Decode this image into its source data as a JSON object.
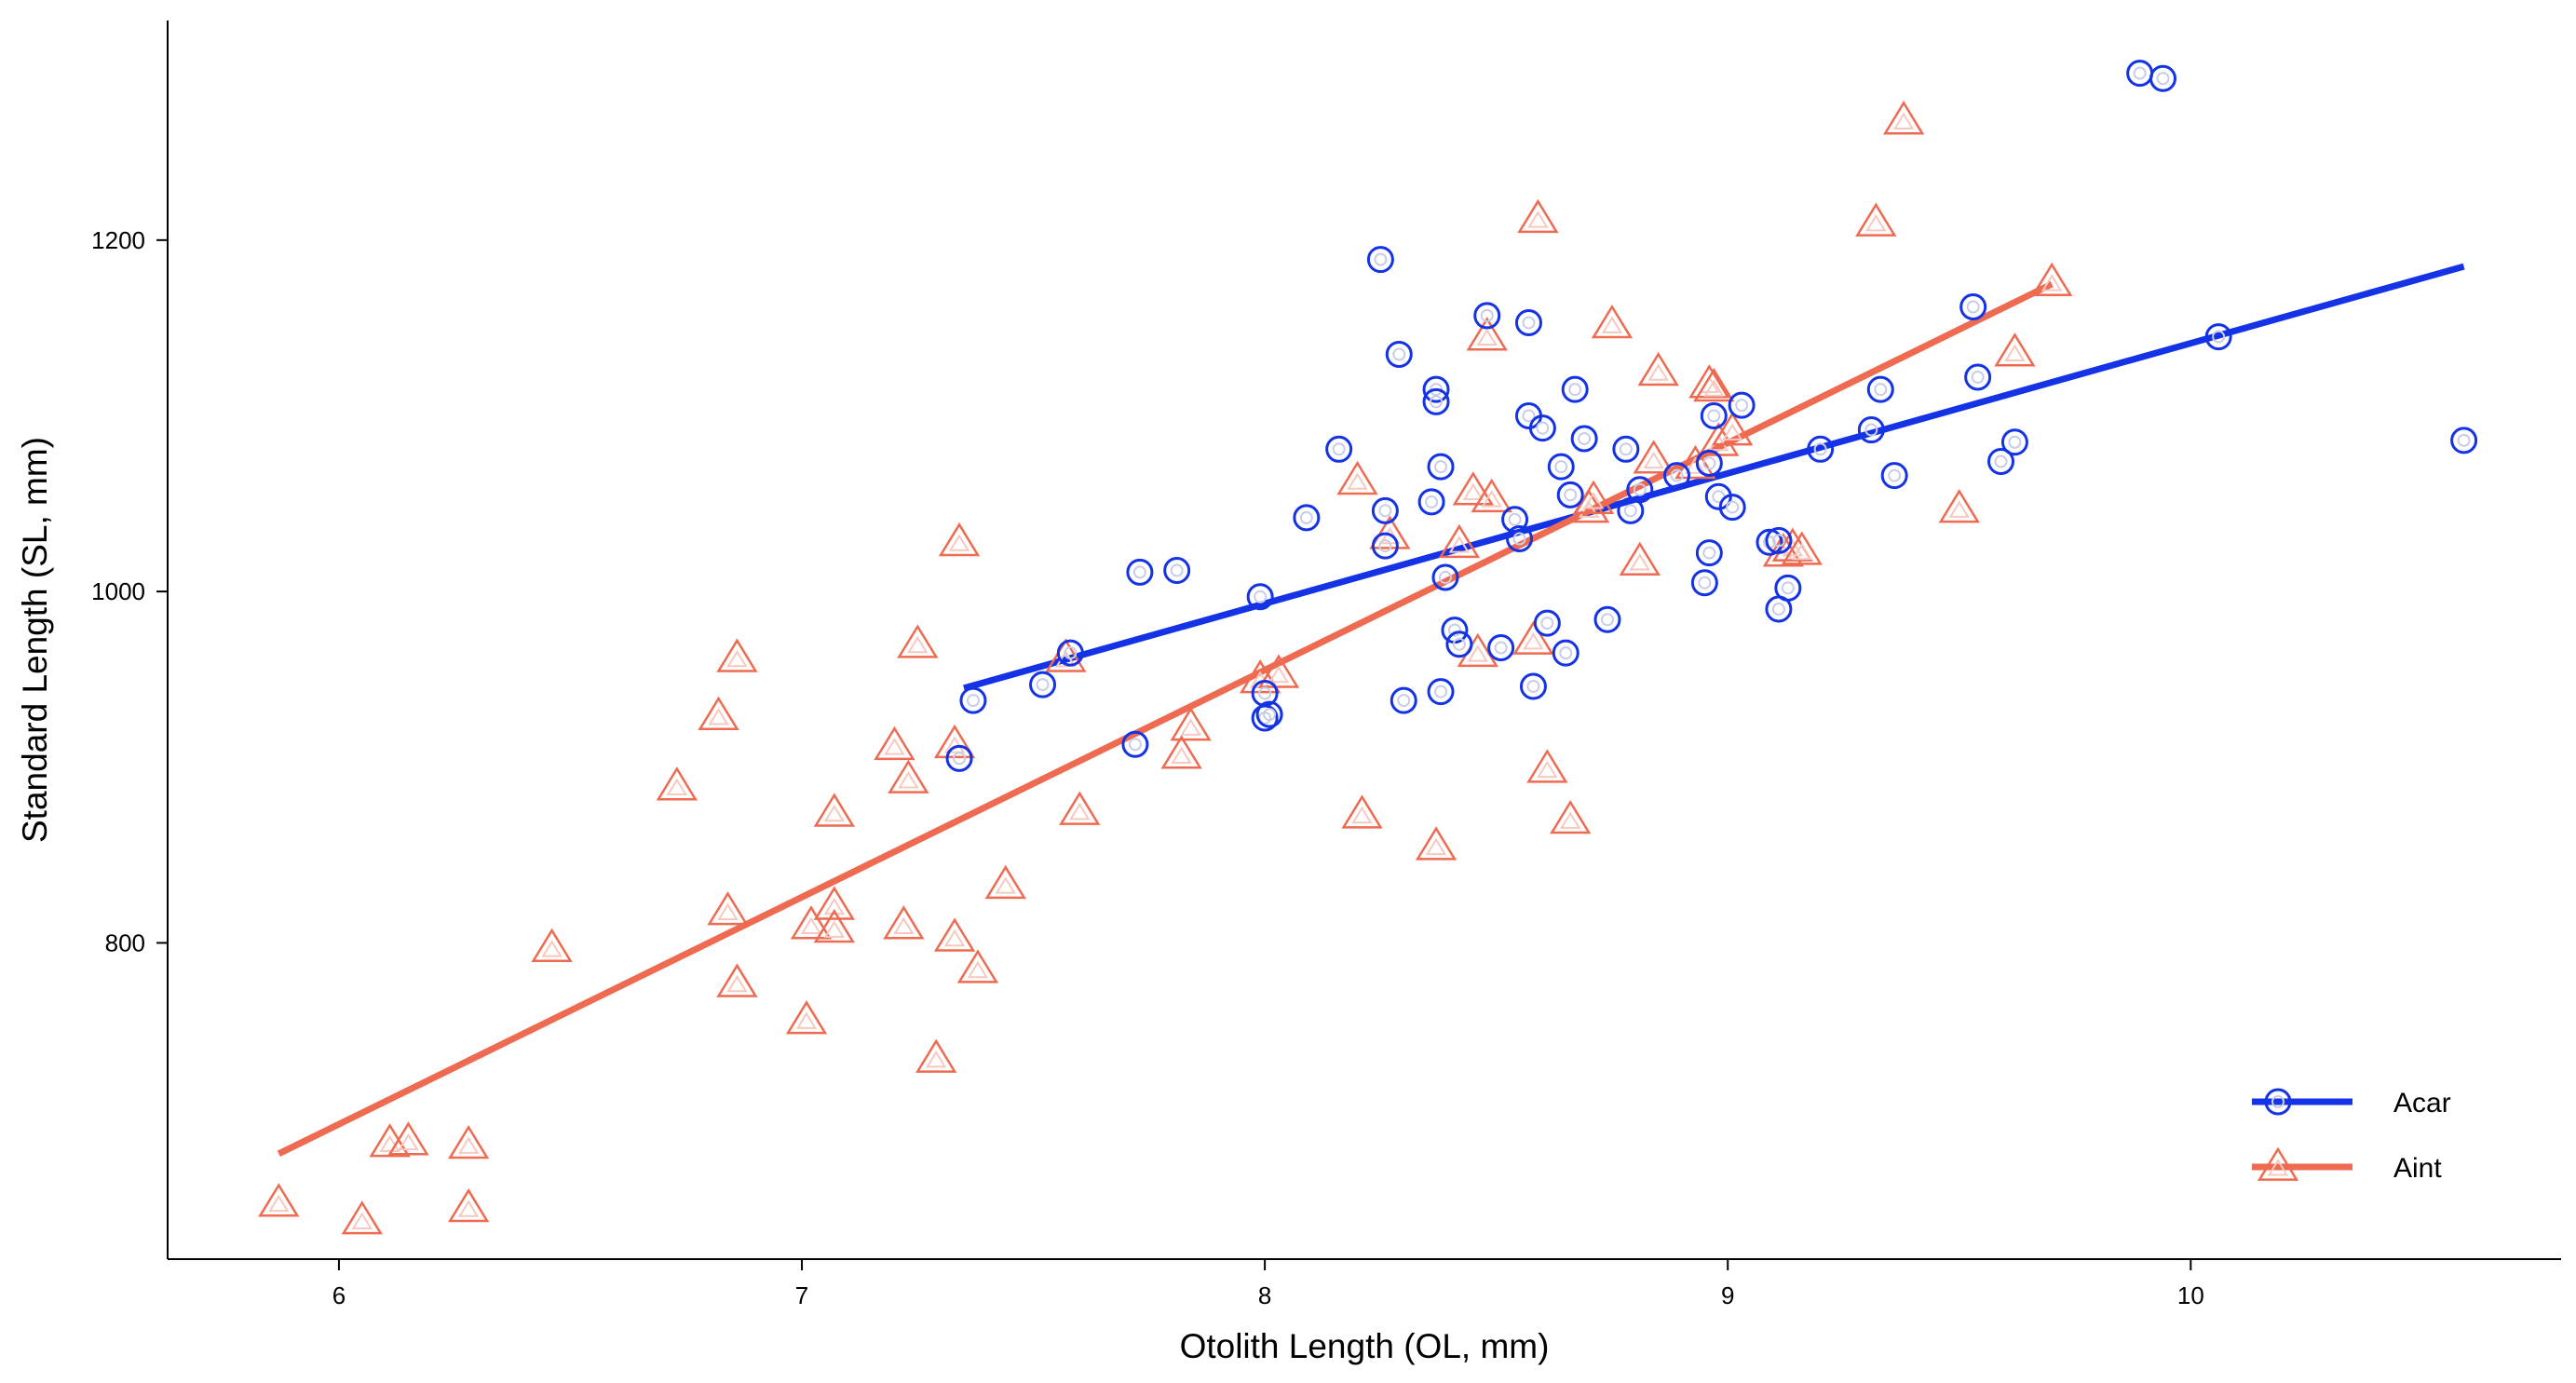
{
  "chart_data": {
    "type": "scatter",
    "xlabel": "Otolith Length (OL, mm)",
    "ylabel": "Standard Length (SL, mm)",
    "xlim": [
      5.63,
      10.8
    ],
    "ylim": [
      620,
      1325
    ],
    "xticks": [
      6,
      7,
      8,
      9,
      10
    ],
    "yticks": [
      800,
      1000,
      1200
    ],
    "legend_position": "bottom-right",
    "series": [
      {
        "name": "Acar",
        "marker": "circle",
        "color": "#1432e6",
        "fit_line": [
          [
            7.35,
            945
          ],
          [
            10.59,
            1185
          ]
        ],
        "points": [
          [
            7.34,
            905
          ],
          [
            7.37,
            938
          ],
          [
            7.52,
            947
          ],
          [
            7.58,
            965
          ],
          [
            7.72,
            913
          ],
          [
            7.73,
            1011
          ],
          [
            7.81,
            1012
          ],
          [
            7.99,
            997
          ],
          [
            8.0,
            928
          ],
          [
            8.0,
            942
          ],
          [
            8.01,
            930
          ],
          [
            8.09,
            1042
          ],
          [
            8.16,
            1081
          ],
          [
            8.25,
            1189
          ],
          [
            8.26,
            1046
          ],
          [
            8.26,
            1026
          ],
          [
            8.29,
            1135
          ],
          [
            8.3,
            938
          ],
          [
            8.36,
            1051
          ],
          [
            8.37,
            1115
          ],
          [
            8.37,
            1108
          ],
          [
            8.38,
            1071
          ],
          [
            8.38,
            943
          ],
          [
            8.39,
            1008
          ],
          [
            8.41,
            978
          ],
          [
            8.42,
            970
          ],
          [
            8.48,
            1157
          ],
          [
            8.51,
            968
          ],
          [
            8.54,
            1041
          ],
          [
            8.55,
            1030
          ],
          [
            8.57,
            1153
          ],
          [
            8.57,
            1100
          ],
          [
            8.58,
            946
          ],
          [
            8.6,
            1093
          ],
          [
            8.61,
            982
          ],
          [
            8.64,
            1071
          ],
          [
            8.65,
            965
          ],
          [
            8.66,
            1055
          ],
          [
            8.67,
            1115
          ],
          [
            8.69,
            1087
          ],
          [
            8.74,
            984
          ],
          [
            8.78,
            1081
          ],
          [
            8.79,
            1046
          ],
          [
            8.81,
            1058
          ],
          [
            8.89,
            1066
          ],
          [
            8.95,
            1005
          ],
          [
            8.96,
            1073
          ],
          [
            8.96,
            1022
          ],
          [
            8.97,
            1100
          ],
          [
            8.98,
            1054
          ],
          [
            9.01,
            1048
          ],
          [
            9.03,
            1106
          ],
          [
            9.09,
            1028
          ],
          [
            9.11,
            1029
          ],
          [
            9.11,
            990
          ],
          [
            9.13,
            1002
          ],
          [
            9.2,
            1081
          ],
          [
            9.31,
            1092
          ],
          [
            9.33,
            1115
          ],
          [
            9.36,
            1066
          ],
          [
            9.53,
            1162
          ],
          [
            9.54,
            1122
          ],
          [
            9.59,
            1074
          ],
          [
            9.62,
            1085
          ],
          [
            9.89,
            1295
          ],
          [
            9.94,
            1292
          ],
          [
            10.06,
            1145
          ],
          [
            10.59,
            1086
          ]
        ]
      },
      {
        "name": "Aint",
        "marker": "triangle",
        "color": "#ee6a50",
        "fit_line": [
          [
            5.87,
            680
          ],
          [
            9.7,
            1175
          ]
        ],
        "points": [
          [
            5.87,
            652
          ],
          [
            6.05,
            642
          ],
          [
            6.11,
            686
          ],
          [
            6.15,
            687
          ],
          [
            6.28,
            685
          ],
          [
            6.28,
            649
          ],
          [
            6.46,
            797
          ],
          [
            6.73,
            889
          ],
          [
            6.82,
            929
          ],
          [
            6.84,
            818
          ],
          [
            6.86,
            962
          ],
          [
            6.86,
            777
          ],
          [
            7.01,
            756
          ],
          [
            7.02,
            810
          ],
          [
            7.07,
            874
          ],
          [
            7.07,
            821
          ],
          [
            7.07,
            808
          ],
          [
            7.2,
            912
          ],
          [
            7.22,
            810
          ],
          [
            7.23,
            893
          ],
          [
            7.25,
            970
          ],
          [
            7.29,
            734
          ],
          [
            7.33,
            913
          ],
          [
            7.33,
            803
          ],
          [
            7.34,
            1028
          ],
          [
            7.38,
            785
          ],
          [
            7.44,
            833
          ],
          [
            7.57,
            962
          ],
          [
            7.6,
            875
          ],
          [
            7.82,
            907
          ],
          [
            7.84,
            923
          ],
          [
            7.99,
            950
          ],
          [
            8.03,
            953
          ],
          [
            8.2,
            1063
          ],
          [
            8.21,
            873
          ],
          [
            8.27,
            1032
          ],
          [
            8.37,
            855
          ],
          [
            8.42,
            1027
          ],
          [
            8.45,
            1057
          ],
          [
            8.46,
            965
          ],
          [
            8.48,
            1145
          ],
          [
            8.49,
            1053
          ],
          [
            8.58,
            972
          ],
          [
            8.59,
            1212
          ],
          [
            8.61,
            899
          ],
          [
            8.66,
            870
          ],
          [
            8.7,
            1047
          ],
          [
            8.71,
            1052
          ],
          [
            8.75,
            1152
          ],
          [
            8.81,
            1017
          ],
          [
            8.84,
            1075
          ],
          [
            8.85,
            1125
          ],
          [
            8.93,
            1072
          ],
          [
            8.96,
            1118
          ],
          [
            8.97,
            1116
          ],
          [
            8.98,
            1085
          ],
          [
            9.01,
            1091
          ],
          [
            9.12,
            1022
          ],
          [
            9.14,
            1025
          ],
          [
            9.16,
            1023
          ],
          [
            9.32,
            1210
          ],
          [
            9.38,
            1268
          ],
          [
            9.5,
            1047
          ],
          [
            9.62,
            1136
          ],
          [
            9.7,
            1176
          ]
        ]
      }
    ]
  }
}
